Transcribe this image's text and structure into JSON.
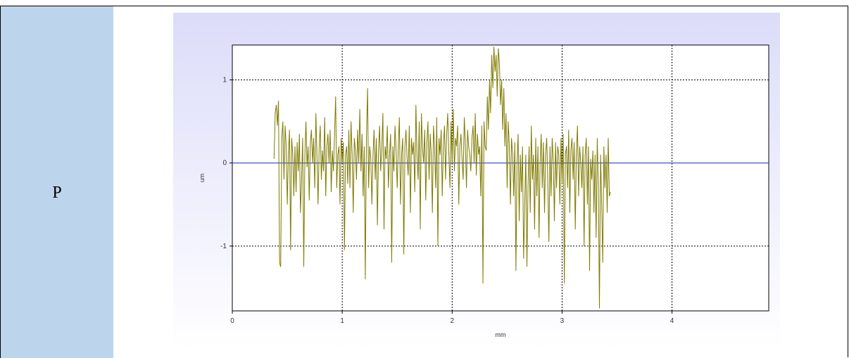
{
  "row_label": "P",
  "chart_data": {
    "type": "line",
    "xlabel": "mm",
    "ylabel": "um",
    "xlim": [
      0,
      4.88
    ],
    "ylim": [
      -1.78,
      1.42
    ],
    "xticks": [
      0,
      1,
      2,
      3,
      4
    ],
    "xtick_labels": [
      "0",
      "1",
      "2",
      "3",
      "4"
    ],
    "yticks": [
      -1,
      0,
      1
    ],
    "ytick_labels": [
      "-1",
      "0",
      "1"
    ],
    "grid": "dashed",
    "baseline": 0,
    "colors": {
      "series": "#7f7a00",
      "baseline": "#3a55d6",
      "grid": "#000000",
      "background_top": "#dcdcfa",
      "background_bottom": "#ffffff"
    },
    "series": [
      {
        "x_start": 0.38,
        "x_step": 0.01,
        "values": [
          0.05,
          0.6,
          0.7,
          0.45,
          0.75,
          -1.2,
          -1.25,
          0.3,
          0.5,
          -0.2,
          0.45,
          0.2,
          -0.5,
          0.1,
          0.4,
          -1.05,
          0.3,
          0.1,
          -0.4,
          0.2,
          -0.35,
          0.25,
          -0.1,
          0.35,
          -0.6,
          -0.2,
          0.3,
          -1.25,
          0.1,
          0.5,
          -0.05,
          0.2,
          -0.45,
          0.25,
          0.4,
          0.0,
          0.3,
          -0.3,
          0.6,
          0.1,
          -0.5,
          0.2,
          0.45,
          -0.2,
          0.15,
          -0.1,
          0.55,
          -0.4,
          0.2,
          0.35,
          0.0,
          0.4,
          -0.35,
          0.15,
          -0.1,
          0.35,
          0.8,
          -0.3,
          0.1,
          0.2,
          -0.5,
          0.3,
          0.0,
          0.25,
          -1.05,
          0.1,
          0.2,
          -0.25,
          0.4,
          -0.3,
          0.5,
          0.1,
          -0.6,
          0.3,
          0.15,
          -0.2,
          0.4,
          0.0,
          0.65,
          -0.1,
          0.35,
          -0.4,
          0.2,
          -1.4,
          0.3,
          0.9,
          -0.3,
          0.2,
          0.05,
          -0.5,
          0.1,
          0.4,
          -0.2,
          0.3,
          -0.75,
          0.15,
          0.45,
          -0.1,
          0.2,
          0.6,
          -0.8,
          0.2,
          0.05,
          0.45,
          -0.3,
          0.1,
          0.35,
          -1.2,
          0.2,
          -0.1,
          0.45,
          0.15,
          -0.3,
          0.2,
          0.55,
          -0.5,
          0.1,
          0.3,
          -1.1,
          0.2,
          0.4,
          0.05,
          -0.15,
          0.45,
          -0.6,
          0.3,
          0.1,
          0.25,
          -0.35,
          0.7,
          0.1,
          -0.2,
          0.5,
          -0.8,
          0.6,
          0.2,
          0.0,
          0.4,
          -0.45,
          0.25,
          0.5,
          -0.2,
          0.35,
          0.1,
          -0.6,
          0.45,
          0.2,
          -0.3,
          0.55,
          -1.0,
          0.3,
          0.1,
          0.4,
          -0.4,
          0.2,
          0.45,
          -0.2,
          0.35,
          0.6,
          0.1,
          -0.3,
          0.5,
          0.0,
          0.65,
          -0.1,
          0.3,
          0.2,
          0.45,
          -0.5,
          0.2,
          0.35,
          0.05,
          -0.2,
          0.55,
          0.25,
          -0.3,
          0.4,
          0.2,
          0.1,
          -0.1,
          0.3,
          0.45,
          0.0,
          0.6,
          -0.15,
          0.35,
          0.1,
          0.2,
          -0.4,
          0.45,
          -1.45,
          0.5,
          0.2,
          0.15,
          0.8,
          0.4,
          1.0,
          0.6,
          1.3,
          0.9,
          1.4,
          1.1,
          1.3,
          0.8,
          1.38,
          1.2,
          0.7,
          1.0,
          0.4,
          0.9,
          0.2,
          0.6,
          -0.3,
          0.5,
          0.2,
          -0.5,
          0.3,
          0.1,
          -0.4,
          0.25,
          -1.3,
          0.0,
          0.35,
          -0.7,
          0.1,
          -0.35,
          0.2,
          -1.15,
          -0.5,
          0.1,
          -1.25,
          -0.3,
          0.2,
          -0.6,
          0.45,
          -0.2,
          0.1,
          -0.8,
          0.3,
          -0.4,
          0.2,
          -0.9,
          0.0,
          0.35,
          -0.3,
          0.25,
          -0.6,
          0.1,
          0.3,
          -0.2,
          -0.95,
          0.2,
          -0.4,
          0.3,
          0.0,
          -0.7,
          0.25,
          -0.3,
          0.2,
          0.1,
          -0.5,
          0.3,
          -0.25,
          0.35,
          -1.45,
          0.1,
          0.2,
          -0.3,
          0.4,
          -0.6,
          0.15,
          0.3,
          -0.2,
          0.25,
          -0.8,
          0.1,
          0.45,
          -0.4,
          0.2,
          0.0,
          -0.3,
          0.2,
          -1.0,
          0.1,
          0.3,
          -0.5,
          0.2,
          -1.3,
          0.05,
          -0.2,
          0.15,
          -0.6,
          0.1,
          -0.9,
          0.3,
          -0.3,
          -1.75,
          0.1,
          -0.5,
          -1.2,
          0.2,
          -0.3,
          0.1,
          -0.6,
          0.3,
          -0.4,
          -0.35
        ]
      }
    ]
  }
}
